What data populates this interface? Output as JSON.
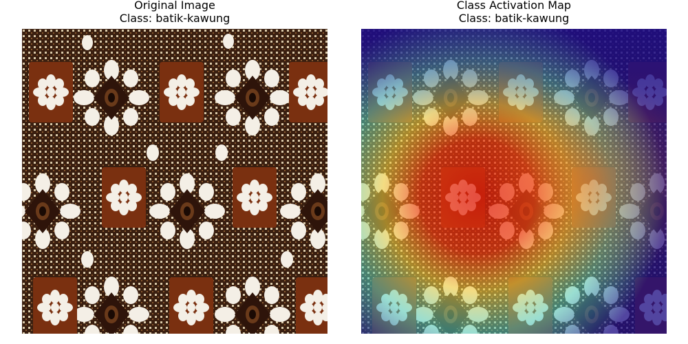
{
  "panels": [
    {
      "title": "Original Image",
      "class_label": "Class: batik-kawung",
      "image": "batik-kawung-fabric"
    },
    {
      "title": "Class Activation Map",
      "class_label": "Class: batik-kawung",
      "image": "batik-kawung-heatmap-overlay"
    }
  ],
  "colors": {
    "fabric_brown": "#7a3010",
    "fabric_dark": "#3a1a0c",
    "flower_white": "#f4efe6",
    "heat_high": "#e02010",
    "heat_mid": "#f0d040",
    "heat_low": "#2a1a90"
  }
}
